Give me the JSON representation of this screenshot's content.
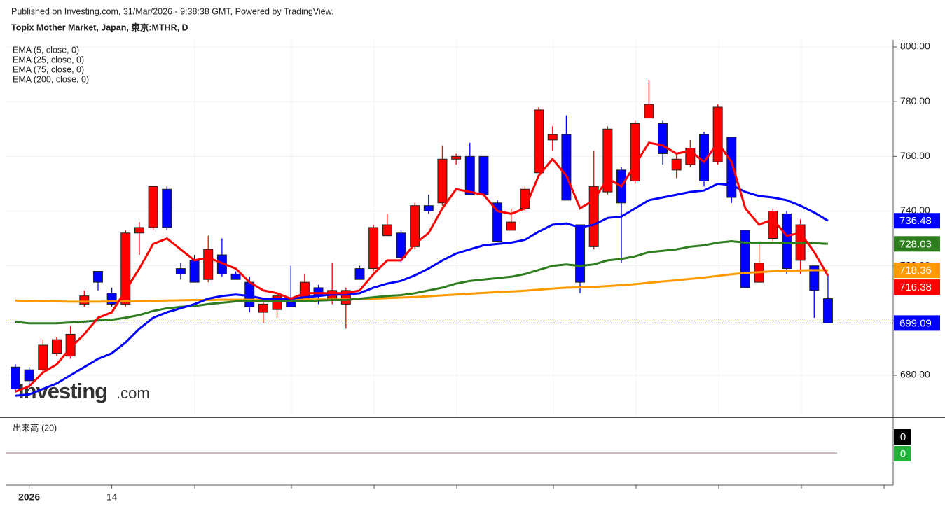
{
  "header": {
    "published": "Published on Investing.com, 31/Mar/2026 - 9:38:38 GMT, Powered by TradingView.",
    "title": "Topix Mother Market, Japan, 東京:MTHR, D"
  },
  "watermark": {
    "main": "Investing",
    "suffix": ".com"
  },
  "chart_data": {
    "type": "candlestick",
    "categories": [
      null,
      "2026",
      null,
      null,
      null,
      null,
      null,
      "14",
      null,
      null,
      null,
      null,
      null,
      null,
      null,
      null,
      null,
      null,
      null,
      null,
      null,
      null,
      null,
      null,
      null,
      null,
      null,
      null,
      null,
      null,
      null,
      null,
      null,
      null,
      null,
      null,
      null,
      null,
      null,
      null,
      null,
      null,
      null,
      null,
      null,
      null,
      null,
      null,
      null,
      null,
      null,
      null,
      null,
      null,
      null,
      null,
      null,
      null,
      null,
      null
    ],
    "candles": {
      "up_color": "#ff0000",
      "down_color": "#0000ff",
      "open": [
        683,
        682,
        682,
        688,
        687,
        706,
        718,
        710,
        706,
        732,
        734,
        748,
        719,
        722,
        715,
        724,
        717,
        714,
        703,
        704,
        707,
        707,
        712,
        708,
        706,
        719,
        719,
        731,
        732,
        727,
        742,
        743,
        759,
        760,
        760,
        743,
        733,
        741,
        754,
        766,
        768,
        735,
        727,
        747,
        755,
        751,
        774,
        772,
        755,
        757,
        768,
        758,
        767,
        733,
        714,
        730,
        739,
        722,
        720,
        708
      ],
      "high": [
        684,
        683,
        693,
        694,
        698,
        711,
        718,
        712,
        733,
        736,
        749,
        749,
        721,
        724,
        731,
        730,
        718,
        716,
        708,
        710,
        720,
        717,
        713,
        721,
        712,
        720,
        735,
        739,
        733,
        743,
        746,
        764,
        761,
        765,
        760,
        744,
        741,
        749,
        778,
        771,
        775,
        735,
        762,
        771,
        756,
        773,
        788,
        773,
        761,
        766,
        769,
        779,
        767,
        733,
        729,
        741,
        740,
        737,
        720,
        717
      ],
      "low": [
        674,
        676,
        681,
        687,
        686,
        705,
        711,
        705,
        705,
        724,
        733,
        733,
        715,
        714,
        714,
        716,
        715,
        703,
        699,
        701,
        705,
        707,
        706,
        706,
        697,
        715,
        718,
        731,
        721,
        726,
        739,
        742,
        757,
        746,
        746,
        729,
        733,
        740,
        754,
        762,
        744,
        710,
        726,
        746,
        721,
        750,
        774,
        757,
        752,
        756,
        749,
        757,
        743,
        712,
        714,
        729,
        717,
        717,
        701,
        699
      ],
      "close": [
        675,
        678,
        691,
        693,
        695,
        709,
        714,
        706,
        732,
        734,
        749,
        734,
        717,
        714,
        726,
        717,
        715,
        705,
        706,
        709,
        705,
        714,
        709,
        711,
        711,
        715,
        734,
        735,
        723,
        742,
        740,
        759,
        760,
        746,
        746,
        729,
        736,
        748,
        777,
        768,
        744,
        714,
        749,
        770,
        743,
        772,
        779,
        761,
        759,
        763,
        751,
        778,
        745,
        712,
        721,
        740,
        719,
        735,
        711,
        699.09
      ]
    },
    "series": [
      {
        "name": "EMA (5, close, 0)",
        "color": "#ff0000",
        "values": [
          674,
          676,
          681,
          684,
          690,
          695,
          701,
          703,
          711,
          719,
          728,
          730,
          726,
          722,
          723,
          721,
          719,
          714,
          711,
          710,
          708,
          710,
          710,
          710,
          710,
          711,
          717,
          722,
          722,
          728,
          732,
          741,
          748,
          747,
          746,
          740,
          739,
          741,
          753,
          759,
          753,
          741,
          744,
          752,
          749,
          757,
          765,
          764,
          761,
          762,
          758,
          765,
          758,
          741,
          735,
          737,
          731,
          732,
          725,
          716.38
        ]
      },
      {
        "name": "EMA (25, close, 0)",
        "color": "#0000ff",
        "values": [
          672.5,
          673,
          675,
          677,
          680,
          683,
          686,
          688,
          692,
          697,
          701,
          703,
          704.5,
          706,
          708,
          709,
          709.5,
          709,
          708,
          708,
          708,
          708.5,
          709,
          709.5,
          709.5,
          710,
          712,
          713.5,
          714.5,
          716.5,
          719,
          722,
          724.5,
          726,
          727.5,
          728,
          728.5,
          729.5,
          732.5,
          735,
          735.5,
          734,
          735,
          737.5,
          738,
          741,
          744,
          745,
          746,
          747,
          747.5,
          750,
          749.5,
          747,
          745.5,
          745,
          744,
          742,
          739.5,
          736.48
        ]
      },
      {
        "name": "EMA (75, close, 0)",
        "color": "#2e7d1e",
        "values": [
          699.5,
          699,
          699,
          699,
          699.3,
          699.6,
          700,
          700.3,
          701,
          702,
          703.5,
          704.5,
          705,
          705.3,
          706,
          706.5,
          707,
          707,
          707,
          707,
          707,
          707,
          707.3,
          707.5,
          707.5,
          708,
          708.5,
          709,
          709.3,
          710,
          711,
          712,
          713.5,
          714.5,
          715,
          715.5,
          716,
          717,
          718.5,
          720,
          720.5,
          720,
          720.5,
          722,
          722.5,
          723.5,
          725,
          725.5,
          726,
          727,
          727.5,
          728.5,
          729,
          728.5,
          728.5,
          728.5,
          728.5,
          728.5,
          728.3,
          728.03
        ]
      },
      {
        "name": "EMA (200, close, 0)",
        "color": "#ff9900",
        "values": [
          707.3,
          707.2,
          707.1,
          707,
          706.9,
          706.9,
          706.9,
          707,
          707,
          707.1,
          707.2,
          707.3,
          707.4,
          707.5,
          707.5,
          707.6,
          707.6,
          707.6,
          707.6,
          707.6,
          707.6,
          707.7,
          707.7,
          707.7,
          707.7,
          707.8,
          708,
          708.2,
          708.4,
          708.6,
          708.9,
          709.2,
          709.5,
          709.8,
          710.1,
          710.4,
          710.6,
          710.9,
          711.3,
          711.7,
          712,
          712.1,
          712.3,
          712.6,
          712.9,
          713.3,
          713.8,
          714.3,
          714.7,
          715.2,
          715.7,
          716.3,
          716.9,
          717.4,
          717.7,
          718,
          718.2,
          718.3,
          718.4,
          718.36
        ]
      }
    ],
    "ylim": [
      664.65,
      802.56
    ],
    "yticks": [
      {
        "value": 680,
        "label": "680.00"
      },
      {
        "value": 700,
        "label": "700.00"
      },
      {
        "value": 720,
        "label": "720.00"
      },
      {
        "value": 740,
        "label": "740.00"
      },
      {
        "value": 760,
        "label": "760.00"
      },
      {
        "value": 780,
        "label": "780.00"
      },
      {
        "value": 800,
        "label": "800.00"
      }
    ],
    "grid": true
  },
  "volume_panel": {
    "title": "出来高 (20)",
    "last_values": [
      {
        "value": 0,
        "color": "#000000"
      },
      {
        "value": 0,
        "color": "#22b33a"
      }
    ]
  }
}
